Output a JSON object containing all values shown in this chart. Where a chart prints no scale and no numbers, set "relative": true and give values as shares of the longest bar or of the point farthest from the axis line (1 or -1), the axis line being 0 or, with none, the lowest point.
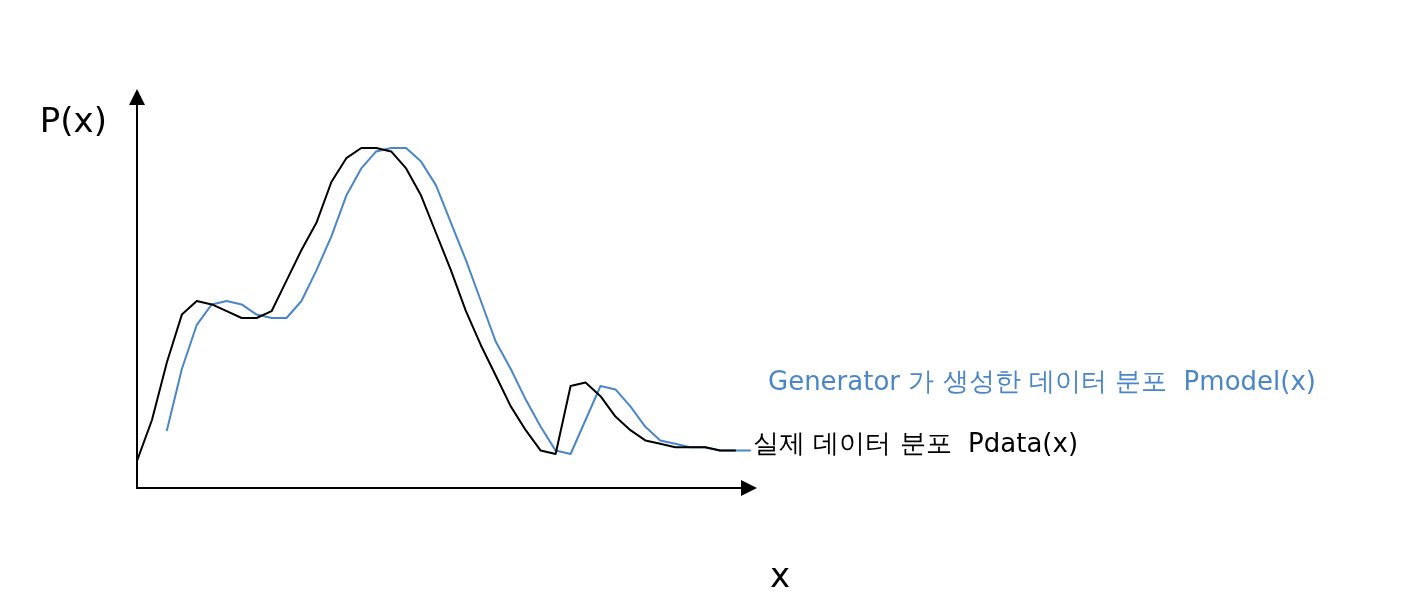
{
  "chart_data": {
    "type": "line",
    "relative": true,
    "ylabel": "P(x)",
    "xlabel": "x",
    "grid": false,
    "legend": false,
    "marker": "none",
    "line_style": "solid",
    "categories": [
      null,
      null,
      null,
      null,
      null,
      null,
      null,
      null,
      null,
      null,
      null,
      null,
      null,
      null,
      null,
      null,
      null,
      null,
      null,
      null,
      null,
      null,
      null,
      null,
      null,
      null,
      null,
      null,
      null,
      null,
      null,
      null,
      null,
      null,
      null,
      null,
      null,
      null,
      null,
      null,
      null,
      null
    ],
    "series": [
      {
        "name": "Generator 가 생성한 데이터 분포  Pmodel(x)",
        "color": "#4a86c8",
        "values": [
          null,
          null,
          0.17,
          0.35,
          0.48,
          0.54,
          0.55,
          0.54,
          0.51,
          0.5,
          0.5,
          0.55,
          0.64,
          0.74,
          0.86,
          0.94,
          0.99,
          1.0,
          1.0,
          0.96,
          0.89,
          0.78,
          0.67,
          0.55,
          0.43,
          0.35,
          0.26,
          0.18,
          0.11,
          0.1,
          0.2,
          0.3,
          0.29,
          0.24,
          0.18,
          0.14,
          0.13,
          0.12,
          0.12,
          0.11,
          0.11,
          0.11
        ]
      },
      {
        "name": "실제 데이터 분포  Pdata(x)",
        "color": "#000000",
        "values": [
          0.08,
          0.2,
          0.37,
          0.51,
          0.55,
          0.54,
          0.52,
          0.5,
          0.5,
          0.52,
          0.61,
          0.7,
          0.78,
          0.9,
          0.97,
          1.0,
          1.0,
          0.99,
          0.94,
          0.86,
          0.75,
          0.64,
          0.52,
          0.42,
          0.33,
          0.24,
          0.17,
          0.11,
          0.1,
          0.3,
          0.31,
          0.27,
          0.21,
          0.17,
          0.14,
          0.13,
          0.12,
          0.12,
          0.12,
          0.11,
          0.11,
          null
        ]
      }
    ]
  }
}
